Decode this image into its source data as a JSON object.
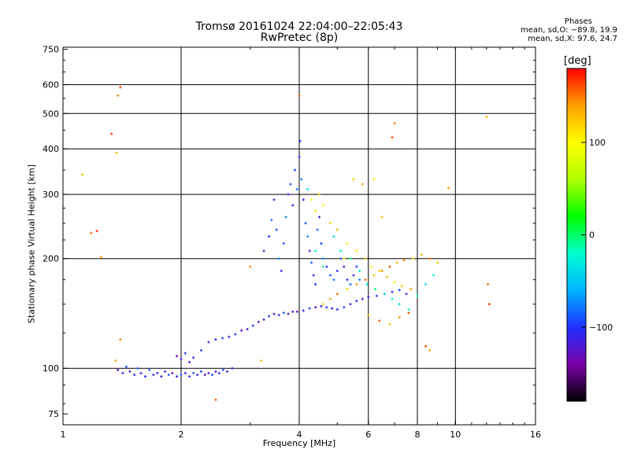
{
  "title_line1": "Tromsø 20161024 22:04:00–22:05:43",
  "title_line2": "RwPretec (8p)",
  "stats": {
    "heading": "Phases",
    "o_line": "mean, sd,O: −89.8, 19.9",
    "x_line": "mean, sd,X:  97.6, 24.7"
  },
  "colorbar": {
    "title": "[deg]",
    "ticks": [
      {
        "value": 100,
        "label": "100"
      },
      {
        "value": 0,
        "label": "0"
      },
      {
        "value": -100,
        "label": "−100"
      }
    ],
    "range": [
      -180,
      180
    ],
    "stops": [
      "#000000",
      "#7a00a8",
      "#2030ff",
      "#00b4ff",
      "#00ffd0",
      "#00ff00",
      "#b0ff00",
      "#ffff00",
      "#ffa000",
      "#ff0000"
    ]
  },
  "chart_data": {
    "type": "scatter",
    "title": "Tromsø 20161024 22:04:00–22:05:43 RwPretec (8p)",
    "xlabel": "Frequency [MHz]",
    "ylabel": "Stationary phase Virtual Height [km]",
    "xscale": "log",
    "yscale": "log",
    "xlim": [
      1,
      16
    ],
    "ylim": [
      70,
      760
    ],
    "grid": true,
    "xticks": [
      {
        "value": 1,
        "label": "1"
      },
      {
        "value": 2,
        "label": "2"
      },
      {
        "value": 4,
        "label": "4"
      },
      {
        "value": 6,
        "label": "6"
      },
      {
        "value": 8,
        "label": "8"
      },
      {
        "value": 10,
        "label": "10"
      },
      {
        "value": 16,
        "label": "16"
      }
    ],
    "xgrid": [
      2,
      4,
      6,
      8,
      10
    ],
    "yticks": [
      {
        "value": 75,
        "label": "75"
      },
      {
        "value": 100,
        "label": "100"
      },
      {
        "value": 200,
        "label": "200"
      },
      {
        "value": 300,
        "label": "300"
      },
      {
        "value": 400,
        "label": "400"
      },
      {
        "value": 500,
        "label": "500"
      },
      {
        "value": 600,
        "label": "600"
      },
      {
        "value": 750,
        "label": "750"
      }
    ],
    "ygrid": [
      100,
      200,
      300,
      400,
      500,
      600
    ],
    "color_dimension": "phase [deg]",
    "series": [
      {
        "points": [
          [
            1.38,
            99
          ],
          [
            1.42,
            97
          ],
          [
            1.45,
            101
          ],
          [
            1.48,
            98
          ],
          [
            1.52,
            96
          ],
          [
            1.55,
            100
          ],
          [
            1.58,
            97
          ],
          [
            1.62,
            95
          ],
          [
            1.66,
            99
          ],
          [
            1.7,
            96
          ],
          [
            1.74,
            97
          ],
          [
            1.78,
            95
          ],
          [
            1.82,
            98
          ],
          [
            1.86,
            96
          ],
          [
            1.9,
            97
          ],
          [
            1.95,
            95
          ],
          [
            2.0,
            96
          ],
          [
            2.05,
            97
          ],
          [
            2.1,
            95
          ],
          [
            2.15,
            97
          ],
          [
            2.2,
            96
          ],
          [
            2.25,
            98
          ],
          [
            2.3,
            96
          ],
          [
            2.35,
            97
          ],
          [
            2.4,
            96
          ],
          [
            2.45,
            98
          ],
          [
            2.5,
            97
          ],
          [
            2.56,
            99
          ],
          [
            2.62,
            98
          ],
          [
            2.7,
            100
          ]
        ],
        "phase": -105
      },
      {
        "points": [
          [
            1.95,
            108
          ],
          [
            2.0,
            106
          ],
          [
            2.05,
            110
          ],
          [
            2.1,
            104
          ],
          [
            2.15,
            107
          ],
          [
            2.25,
            112
          ],
          [
            2.35,
            118
          ],
          [
            2.45,
            120
          ],
          [
            2.55,
            121
          ],
          [
            2.65,
            122
          ],
          [
            2.75,
            124
          ],
          [
            2.85,
            127
          ],
          [
            2.95,
            128
          ],
          [
            3.05,
            131
          ],
          [
            3.15,
            134
          ],
          [
            3.25,
            136
          ],
          [
            3.35,
            139
          ],
          [
            3.45,
            141
          ],
          [
            3.55,
            140
          ],
          [
            3.65,
            142
          ],
          [
            3.75,
            141
          ],
          [
            3.85,
            143
          ],
          [
            3.95,
            143
          ],
          [
            4.1,
            144
          ],
          [
            4.25,
            146
          ],
          [
            4.4,
            147
          ],
          [
            4.55,
            148
          ],
          [
            4.7,
            147
          ],
          [
            4.85,
            146
          ],
          [
            5.0,
            145
          ],
          [
            5.2,
            147
          ],
          [
            5.4,
            150
          ],
          [
            5.6,
            153
          ],
          [
            5.8,
            155
          ],
          [
            6.0,
            157
          ],
          [
            6.3,
            158
          ],
          [
            6.6,
            160
          ],
          [
            6.9,
            162
          ],
          [
            7.2,
            164
          ],
          [
            7.5,
            160
          ]
        ],
        "phase": -110
      },
      {
        "points": [
          [
            3.25,
            210
          ],
          [
            3.35,
            230
          ],
          [
            3.4,
            255
          ],
          [
            3.45,
            290
          ],
          [
            3.5,
            240
          ],
          [
            3.55,
            200
          ],
          [
            3.6,
            185
          ],
          [
            3.65,
            220
          ],
          [
            3.7,
            260
          ],
          [
            3.75,
            300
          ],
          [
            3.8,
            320
          ],
          [
            3.85,
            280
          ],
          [
            3.9,
            350
          ],
          [
            3.95,
            310
          ],
          [
            4.0,
            380
          ],
          [
            4.02,
            420
          ],
          [
            4.05,
            330
          ],
          [
            4.1,
            290
          ],
          [
            4.15,
            250
          ],
          [
            4.2,
            230
          ],
          [
            4.25,
            210
          ],
          [
            4.3,
            195
          ],
          [
            4.35,
            180
          ],
          [
            4.4,
            170
          ],
          [
            4.45,
            240
          ],
          [
            4.5,
            260
          ],
          [
            4.55,
            220
          ],
          [
            4.6,
            200
          ],
          [
            4.7,
            190
          ],
          [
            4.8,
            180
          ],
          [
            4.9,
            175
          ],
          [
            5.0,
            185
          ],
          [
            5.1,
            200
          ],
          [
            5.2,
            190
          ],
          [
            5.3,
            175
          ],
          [
            5.4,
            170
          ],
          [
            5.5,
            180
          ],
          [
            5.6,
            190
          ],
          [
            5.7,
            175
          ]
        ],
        "phase": -95
      },
      {
        "points": [
          [
            4.3,
            290
          ],
          [
            4.4,
            270
          ],
          [
            4.5,
            300
          ],
          [
            4.6,
            280
          ],
          [
            4.8,
            250
          ],
          [
            5.0,
            240
          ],
          [
            5.3,
            220
          ],
          [
            5.5,
            330
          ],
          [
            5.8,
            320
          ],
          [
            6.2,
            330
          ],
          [
            6.5,
            260
          ],
          [
            5.2,
            200
          ],
          [
            5.6,
            210
          ],
          [
            5.9,
            200
          ],
          [
            6.1,
            190
          ],
          [
            6.4,
            185
          ],
          [
            6.7,
            178
          ],
          [
            7.0,
            172
          ],
          [
            7.3,
            168
          ],
          [
            7.7,
            165
          ]
        ],
        "phase": 120
      },
      {
        "points": [
          [
            4.6,
            150
          ],
          [
            4.8,
            155
          ],
          [
            5.0,
            160
          ],
          [
            5.3,
            165
          ],
          [
            5.6,
            170
          ],
          [
            5.9,
            175
          ],
          [
            6.2,
            180
          ],
          [
            6.5,
            185
          ],
          [
            6.8,
            190
          ],
          [
            7.1,
            195
          ],
          [
            7.4,
            198
          ],
          [
            7.8,
            200
          ],
          [
            8.2,
            205
          ],
          [
            8.6,
            200
          ],
          [
            9.0,
            195
          ],
          [
            6.0,
            140
          ],
          [
            6.4,
            135
          ],
          [
            6.8,
            132
          ],
          [
            7.2,
            138
          ],
          [
            7.6,
            142
          ]
        ],
        "phase": 140
      },
      {
        "points": [
          [
            4.2,
            310
          ],
          [
            4.4,
            210
          ],
          [
            4.6,
            190
          ],
          [
            4.9,
            230
          ],
          [
            5.1,
            210
          ],
          [
            5.4,
            200
          ],
          [
            5.7,
            185
          ],
          [
            5.95,
            170
          ],
          [
            6.25,
            165
          ],
          [
            6.6,
            160
          ],
          [
            6.9,
            155
          ],
          [
            7.2,
            150
          ],
          [
            7.6,
            145
          ],
          [
            8.0,
            158
          ],
          [
            8.4,
            170
          ],
          [
            8.8,
            180
          ]
        ],
        "phase": -20
      },
      {
        "points": [
          [
            1.12,
            340
          ],
          [
            1.38,
            560
          ],
          [
            1.4,
            590
          ],
          [
            1.37,
            390
          ],
          [
            1.4,
            120
          ],
          [
            1.33,
            440
          ],
          [
            1.36,
            105
          ],
          [
            1.18,
            235
          ],
          [
            1.22,
            238
          ],
          [
            1.25,
            202
          ],
          [
            2.45,
            82
          ],
          [
            3.2,
            105
          ],
          [
            3.0,
            190
          ],
          [
            8.4,
            115
          ],
          [
            8.6,
            112
          ],
          [
            7.0,
            470
          ],
          [
            6.9,
            430
          ],
          [
            12.0,
            490
          ],
          [
            12.1,
            170
          ],
          [
            12.2,
            150
          ],
          [
            9.6,
            312
          ],
          [
            4.0,
            560
          ]
        ],
        "phase": 150
      }
    ]
  }
}
